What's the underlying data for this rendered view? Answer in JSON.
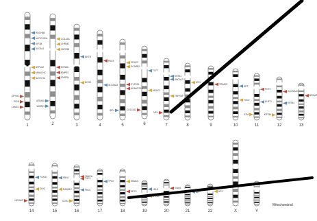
{
  "colors": {
    "background": "#ffffff",
    "chromosome_body": "#ffffff",
    "chromosome_outline": "#6e6e6e",
    "band_dark": "#111111",
    "band_gray": "#8f8f8f",
    "centromere": "#8f8f8f",
    "marker_blue": "#5f8fb8",
    "marker_orange": "#d9a441",
    "marker_red": "#c14b3b",
    "overlay_line": "#000000"
  },
  "rows": [
    {
      "chromosomes": [
        "1",
        "2",
        "3",
        "4",
        "5",
        "6",
        "7",
        "8",
        "9",
        "10",
        "11",
        "12",
        "13"
      ]
    },
    {
      "chromosomes": [
        "14",
        "15",
        "16",
        "17",
        "18",
        "19",
        "20",
        "21",
        "22",
        "X",
        "Y"
      ]
    }
  ],
  "mitochondrial_label": "Mitochondrial",
  "genes": [
    {
      "text": "SLC9A1",
      "chrom": "1"
    },
    {
      "text": "NOTCH2",
      "chrom": "1"
    },
    {
      "text": "LAMC1",
      "chrom": "1"
    },
    {
      "text": "KIF1B",
      "chrom": "1"
    },
    {
      "text": "MMACHC",
      "chrom": "1"
    },
    {
      "text": "PIGR",
      "chrom": "1"
    },
    {
      "text": "NOTCH2NL",
      "chrom": "1"
    },
    {
      "text": "ATP1A2",
      "chrom": "1"
    },
    {
      "text": "EPHX1",
      "chrom": "1"
    },
    {
      "text": "RDCH5B",
      "chrom": "1"
    },
    {
      "text": "ZNF638",
      "chrom": "2"
    },
    {
      "text": "SNRPN",
      "chrom": "2"
    },
    {
      "text": "WDR33",
      "chrom": "2"
    },
    {
      "text": "CHRND",
      "chrom": "2"
    },
    {
      "text": "BMPR2",
      "chrom": "2"
    },
    {
      "text": "ATRAID",
      "chrom": "2"
    },
    {
      "text": "COL4A4",
      "chrom": "2"
    },
    {
      "text": "SCN9A",
      "chrom": "2"
    },
    {
      "text": "NKTR",
      "chrom": "3"
    },
    {
      "text": "BCHE",
      "chrom": "3"
    },
    {
      "text": "PAX3",
      "chrom": "4"
    },
    {
      "text": "SLC26A4",
      "chrom": "4"
    },
    {
      "text": "SCARB2",
      "chrom": "5"
    },
    {
      "text": "ADAMTS16",
      "chrom": "5"
    },
    {
      "text": "IRF4",
      "chrom": "5"
    },
    {
      "text": "CDH23",
      "chrom": "5"
    },
    {
      "text": "CYP2E1",
      "chrom": "5"
    },
    {
      "text": "TCF7",
      "chrom": "6"
    },
    {
      "text": "HDAC2",
      "chrom": "6"
    },
    {
      "text": "COL11A2",
      "chrom": "6"
    },
    {
      "text": "ABCA13",
      "chrom": "7"
    },
    {
      "text": "TNFRSF",
      "chrom": "7"
    },
    {
      "text": "NPY",
      "chrom": "7"
    },
    {
      "text": "KRT81",
      "chrom": "7"
    },
    {
      "text": "MYC",
      "chrom": "8"
    },
    {
      "text": "TRIM32",
      "chrom": "9"
    },
    {
      "text": "RET",
      "chrom": "10"
    },
    {
      "text": "TSC2",
      "chrom": "10"
    },
    {
      "text": "FGF4",
      "chrom": "11"
    },
    {
      "text": "FLRT1",
      "chrom": "11"
    },
    {
      "text": "ATM",
      "chrom": "11"
    },
    {
      "text": "CACNA1C",
      "chrom": "12"
    },
    {
      "text": "KRT81",
      "chrom": "12"
    },
    {
      "text": "KRT86",
      "chrom": "12"
    },
    {
      "text": "BRCA2",
      "chrom": "13"
    },
    {
      "text": "FOXG1",
      "chrom": "14"
    },
    {
      "text": "DLK1",
      "chrom": "14"
    },
    {
      "text": "NEXMIF",
      "chrom": "14"
    },
    {
      "text": "FBN1",
      "chrom": "15"
    },
    {
      "text": "RAD51C",
      "chrom": "15"
    },
    {
      "text": "TSC2",
      "chrom": "16"
    },
    {
      "text": "PKD1",
      "chrom": "16"
    },
    {
      "text": "CDH1",
      "chrom": "16"
    },
    {
      "text": "FANCA",
      "chrom": "16"
    },
    {
      "text": "TP53",
      "chrom": "17"
    },
    {
      "text": "SMAD4",
      "chrom": "18"
    },
    {
      "text": "NPC1",
      "chrom": "18"
    },
    {
      "text": "LDLR",
      "chrom": "19"
    },
    {
      "text": "STK11",
      "chrom": "19"
    },
    {
      "text": "GNAS",
      "chrom": "20"
    },
    {
      "text": "APP",
      "chrom": "21"
    },
    {
      "text": "NF2",
      "chrom": "22"
    }
  ],
  "overlay_lines": [
    {
      "label": "pointer-line-upper"
    },
    {
      "label": "pointer-line-lower"
    }
  ]
}
